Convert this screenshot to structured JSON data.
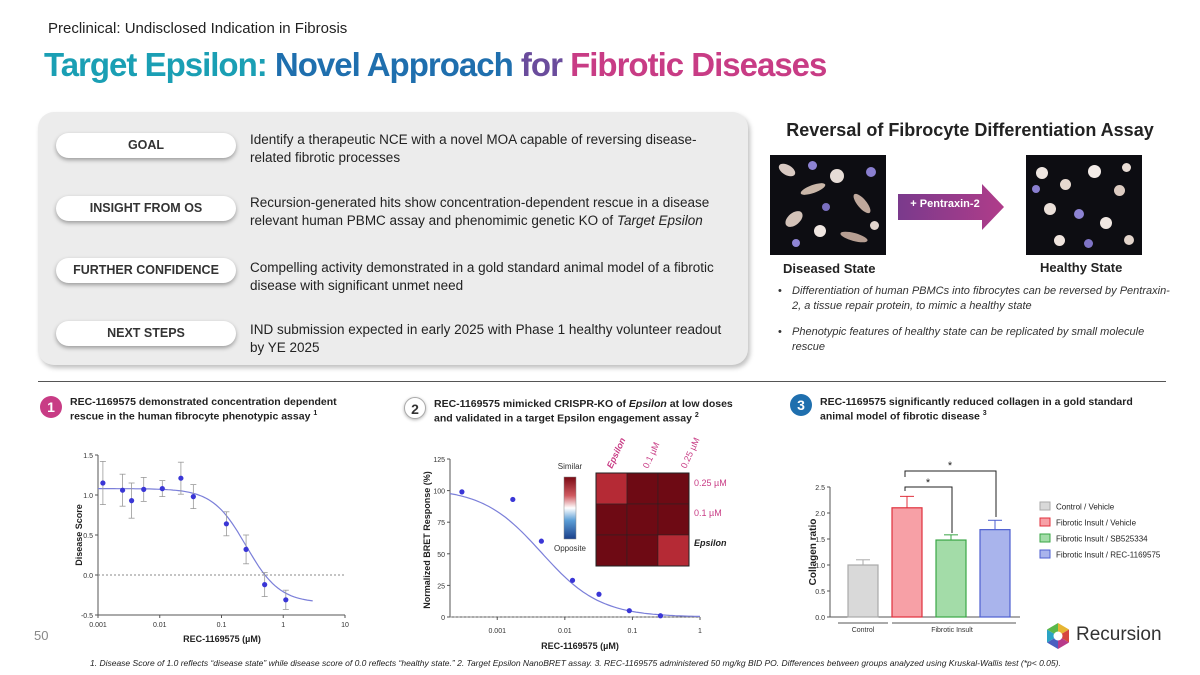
{
  "header": {
    "subtitle": "Preclinical: Undisclosed Indication in Fibrosis",
    "title_parts": [
      "Target Epsilon:",
      " Novel Approach",
      " for",
      " Fibrotic Diseases"
    ]
  },
  "panel": {
    "rows": [
      {
        "label": "GOAL",
        "text": "Identify a therapeutic NCE with a novel MOA capable of reversing disease-related fibrotic processes"
      },
      {
        "label": "INSIGHT FROM OS",
        "text_pre": "Recursion-generated hits show concentration-dependent rescue in a disease relevant human PBMC assay and phenomimic genetic KO of ",
        "text_em": "Target Epsilon"
      },
      {
        "label": "FURTHER CONFIDENCE",
        "text": "Compelling activity demonstrated in a gold standard animal model of a fibrotic disease with significant unmet need"
      },
      {
        "label": "NEXT STEPS",
        "text": "IND submission expected in early 2025 with Phase 1 healthy volunteer readout by YE 2025"
      }
    ]
  },
  "assay": {
    "title": "Reversal of Fibrocyte Differentiation Assay",
    "arrow_label": "+ Pentraxin-2",
    "diseased_label": "Diseased State",
    "healthy_label": "Healthy State",
    "bullets": [
      "Differentiation of human PBMCs into fibrocytes can be reversed by Pentraxin-2, a tissue repair protein, to mimic a healthy state",
      "Phenotypic features of healthy state can be replicated by small molecule rescue"
    ]
  },
  "sections": [
    {
      "num": "1",
      "text": "REC-1169575 demonstrated concentration dependent rescue in the human fibrocyte phenotypic assay",
      "sup": "1"
    },
    {
      "num": "2",
      "text_pre": "REC-1169575 mimicked CRISPR-KO of ",
      "text_em": "Epsilon",
      "text_post": " at low doses and validated in a target Epsilon engagement assay",
      "sup": "2"
    },
    {
      "num": "3",
      "text": "REC-1169575 significantly reduced collagen in a gold standard animal model of fibrotic disease",
      "sup": "3"
    }
  ],
  "heatmap": {
    "scale_top": "Similar",
    "scale_bottom": "Opposite",
    "col_labels": [
      "Epsilon",
      "0.1 µM",
      "0.25 µM"
    ],
    "row_labels": [
      "0.25 µM",
      "0.1 µM",
      "Epsilon"
    ],
    "colors": {
      "diagonal": "#b52a35",
      "off": "#6e0a14",
      "label": "#c83c85"
    }
  },
  "chart_data": [
    {
      "type": "scatter",
      "title": "",
      "xlabel": "REC-1169575 (µM)",
      "ylabel": "Disease Score",
      "x_scale": "log",
      "xlim": [
        0.001,
        10
      ],
      "ylim": [
        -0.5,
        1.5
      ],
      "x_ticks": [
        "0.001",
        "0.01",
        "0.1",
        "1",
        "10"
      ],
      "y_ticks": [
        "-0.5",
        "0.0",
        "0.5",
        "1.0",
        "1.5"
      ],
      "points": [
        {
          "x": 0.0012,
          "y": 1.15,
          "err": 0.27
        },
        {
          "x": 0.0025,
          "y": 1.06,
          "err": 0.2
        },
        {
          "x": 0.0035,
          "y": 0.93,
          "err": 0.22
        },
        {
          "x": 0.0055,
          "y": 1.07,
          "err": 0.15
        },
        {
          "x": 0.011,
          "y": 1.08,
          "err": 0.1
        },
        {
          "x": 0.022,
          "y": 1.21,
          "err": 0.2
        },
        {
          "x": 0.035,
          "y": 0.98,
          "err": 0.15
        },
        {
          "x": 0.12,
          "y": 0.64,
          "err": 0.15
        },
        {
          "x": 0.25,
          "y": 0.32,
          "err": 0.18
        },
        {
          "x": 0.5,
          "y": -0.12,
          "err": 0.15
        },
        {
          "x": 1.1,
          "y": -0.31,
          "err": 0.12
        }
      ],
      "fit": {
        "top": 1.08,
        "bottom": -0.35,
        "ic50": 0.25,
        "hill": 1.6
      },
      "reference_line": 0.0,
      "colors": {
        "points": "#3a36d6",
        "fit": "#7b7fd9",
        "error": "#999999"
      }
    },
    {
      "type": "scatter",
      "title": "",
      "xlabel": "REC-1169575 (µM)",
      "ylabel": "Normalized BRET Response (%)",
      "x_scale": "log",
      "xlim": [
        0.0002,
        1
      ],
      "ylim": [
        0,
        125
      ],
      "x_ticks": [
        "0.001",
        "0.01",
        "0.1",
        "1"
      ],
      "y_ticks": [
        "0",
        "25",
        "50",
        "75",
        "100",
        "125"
      ],
      "points": [
        {
          "x": 0.0003,
          "y": 99
        },
        {
          "x": 0.0017,
          "y": 93
        },
        {
          "x": 0.0045,
          "y": 60
        },
        {
          "x": 0.013,
          "y": 29
        },
        {
          "x": 0.032,
          "y": 18
        },
        {
          "x": 0.09,
          "y": 5
        },
        {
          "x": 0.26,
          "y": 1
        }
      ],
      "fit": {
        "top": 102,
        "bottom": 0,
        "ic50": 0.0045,
        "hill": 1.0
      },
      "reference_line": 0,
      "colors": {
        "points": "#3a36d6",
        "fit": "#7b7fd9"
      }
    },
    {
      "type": "bar",
      "title": "",
      "xlabel": "",
      "ylabel": "Collagen ratio",
      "ylim": [
        0,
        2.5
      ],
      "y_ticks": [
        "0.0",
        "0.5",
        "1.0",
        "1.5",
        "2.0",
        "2.5"
      ],
      "group_labels": [
        "Control",
        "Fibrotic Insult"
      ],
      "categories": [
        "Control / Vehicle",
        "Fibrotic Insult / Vehicle",
        "Fibrotic Insult / SB525334",
        "Fibrotic Insult / REC-1169575"
      ],
      "values": [
        1.0,
        2.1,
        1.48,
        1.68
      ],
      "errors": [
        0.1,
        0.22,
        0.1,
        0.18
      ],
      "colors": [
        {
          "fill": "#d9d9d9",
          "stroke": "#aaaaaa"
        },
        {
          "fill": "#f7a0a6",
          "stroke": "#e0303c"
        },
        {
          "fill": "#a3dca8",
          "stroke": "#3aa646"
        },
        {
          "fill": "#a9b4ec",
          "stroke": "#4d5fd0"
        }
      ],
      "significance": [
        "*",
        "*"
      ]
    }
  ],
  "footer": {
    "page_number": "50",
    "footnote": "1. Disease Score of 1.0 reflects “disease state” while disease score of 0.0 reflects “healthy state.”  2. Target Epsilon NanoBRET assay.  3. REC-1169575 administered 50 mg/kg BID PO. Differences between groups analyzed using Kruskal-Wallis test (*p< 0.05).",
    "logo_text": "Recursion"
  }
}
